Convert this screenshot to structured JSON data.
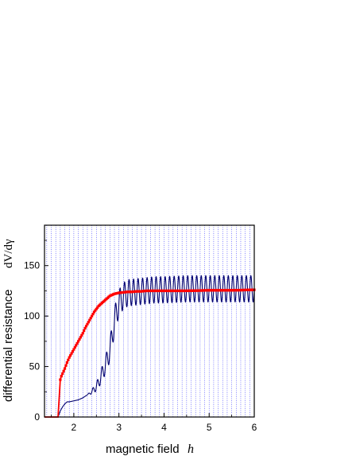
{
  "chart_data": {
    "type": "line",
    "xlabel": "magnetic field",
    "xlabel_symbol": "h",
    "ylabel": "differential resistance",
    "ylabel_symbol": "dV/dγ",
    "xlim": [
      1.35,
      6.0
    ],
    "ylim": [
      0,
      190
    ],
    "x_ticks": [
      2,
      3,
      4,
      5,
      6
    ],
    "y_ticks": [
      0,
      50,
      100,
      150
    ],
    "vertical_grid": "dotted blue, spacing 0.1",
    "series": [
      {
        "color": "#ff0000",
        "style": "line with square markers",
        "x": [
          1.35,
          1.65,
          1.7,
          1.72,
          1.75,
          1.8,
          1.85,
          1.9,
          1.95,
          2.0,
          2.05,
          2.1,
          2.15,
          2.2,
          2.25,
          2.3,
          2.35,
          2.4,
          2.45,
          2.5,
          2.55,
          2.6,
          2.65,
          2.7,
          2.75,
          2.8,
          2.85,
          2.9,
          2.95,
          3.0,
          3.1,
          3.2,
          3.3,
          3.4,
          3.5,
          3.6,
          3.8,
          4.0,
          4.5,
          5.0,
          5.5,
          6.0
        ],
        "y": [
          0,
          0,
          37,
          40,
          43,
          48,
          54,
          59,
          63,
          67,
          71,
          75,
          79,
          83,
          88,
          92,
          96,
          100,
          104,
          107,
          110,
          112,
          114,
          116,
          118,
          120,
          121,
          122,
          122.5,
          123,
          123.5,
          124,
          124,
          124.5,
          124.5,
          125,
          125,
          125,
          125,
          125.5,
          125.5,
          126
        ]
      },
      {
        "color": "#00006e",
        "style": "line",
        "x": [
          1.35,
          1.65,
          1.7,
          1.75,
          1.8,
          1.85,
          1.9,
          2.0,
          2.1,
          2.2,
          2.3,
          2.4,
          2.5,
          2.55,
          2.6,
          2.7,
          2.8,
          2.85,
          2.9,
          3.0,
          3.1,
          3.2,
          3.4,
          3.6,
          3.8,
          4.0,
          4.5,
          5.0,
          5.5,
          6.0
        ],
        "y": [
          0,
          0,
          6,
          10,
          13,
          15,
          15,
          16,
          17,
          19,
          22,
          25,
          30,
          34,
          40,
          51,
          66,
          80,
          95,
          113,
          120,
          123,
          124,
          125,
          126,
          126,
          127,
          127,
          127,
          127
        ],
        "oscillation": {
          "start": 2.3,
          "period": 0.1,
          "amplitude_max": 13
        }
      }
    ]
  }
}
